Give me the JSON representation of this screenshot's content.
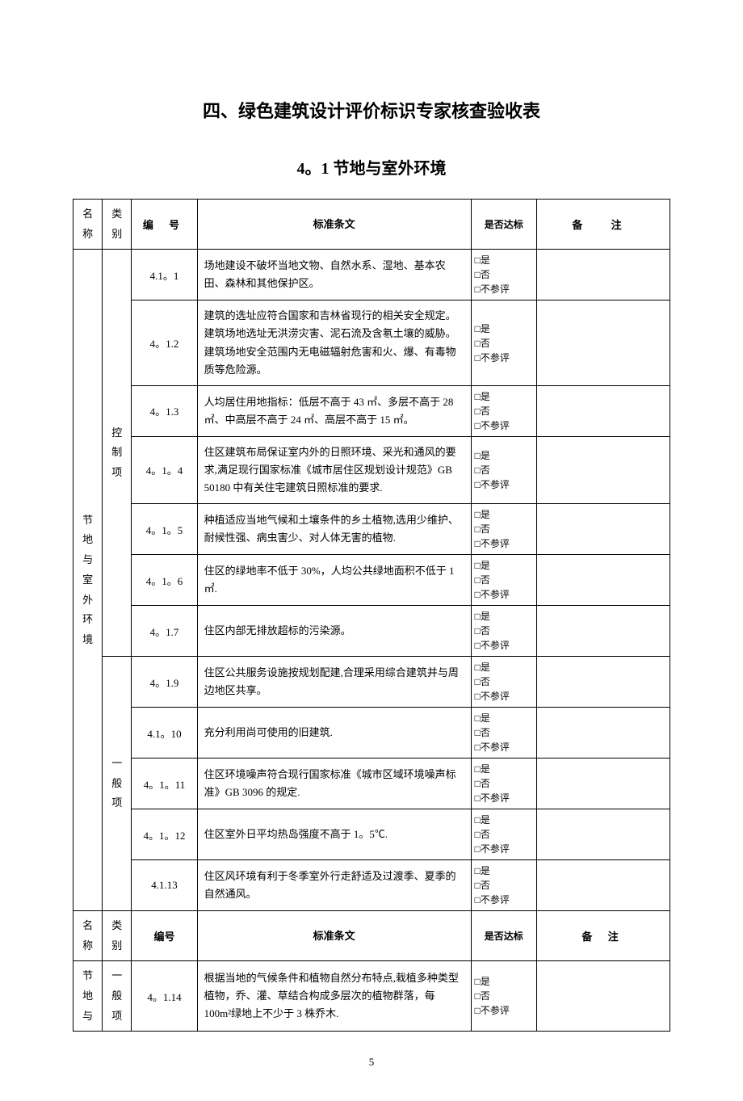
{
  "title": "四、绿色建筑设计评价标识专家核查验收表",
  "subtitle": "4。1 节地与室外环境",
  "header": {
    "name": "名称",
    "cat": "类别",
    "num": "编 号",
    "text": "标准条文",
    "pass": "是否达标",
    "note": "备  注"
  },
  "header2": {
    "name": "名称",
    "cat": "类别",
    "num": "编号",
    "text": "标准条文",
    "pass": "是否达标",
    "note": "备 注"
  },
  "section_name_1": "节地与室外环境",
  "cat_control": "控制项",
  "cat_general": "一般项",
  "section_name_2": "节地与",
  "cat_general_2": "一般项",
  "checkbox": {
    "yes": "□是",
    "no": "□否",
    "na": "□不参评"
  },
  "rows": [
    {
      "num": "4.1。1",
      "text": "场地建设不破坏当地文物、自然水系、湿地、基本农田、森林和其他保护区。"
    },
    {
      "num": "4。1.2",
      "text": "建筑的选址应符合国家和吉林省现行的相关安全规定。建筑场地选址无洪涝灾害、泥石流及含氡土壤的威胁。建筑场地安全范围内无电磁辐射危害和火、爆、有毒物质等危险源。"
    },
    {
      "num": "4。1.3",
      "text": "人均居住用地指标：低层不高于 43 ㎡、多层不高于 28 ㎡、中高层不高于 24 ㎡、高层不高于 15 ㎡。"
    },
    {
      "num": "4。1。4",
      "text": "住区建筑布局保证室内外的日照环境、采光和通风的要求,满足现行国家标准《城市居住区规划设计规范》GB 50180 中有关住宅建筑日照标准的要求."
    },
    {
      "num": "4。1。5",
      "text": "种植适应当地气候和土壤条件的乡土植物,选用少维护、耐候性强、病虫害少、对人体无害的植物."
    },
    {
      "num": "4。1。6",
      "text": " 住区的绿地率不低于 30%，人均公共绿地面积不低于 1 ㎡."
    },
    {
      "num": "4。1.7",
      "text": "住区内部无排放超标的污染源。"
    },
    {
      "num": "4。1.9",
      "text": "住区公共服务设施按规划配建,合理采用综合建筑并与周边地区共享。"
    },
    {
      "num": "4.1。10",
      "text": "充分利用尚可使用的旧建筑."
    },
    {
      "num": "4。1。11",
      "text": "住区环境噪声符合现行国家标准《城市区域环境噪声标准》GB 3096 的规定."
    },
    {
      "num": "4。1。12",
      "text": "住区室外日平均热岛强度不高于 1。5℃."
    },
    {
      "num": "4.1.13",
      "text": "住区风环境有利于冬季室外行走舒适及过渡季、夏季的自然通风。"
    }
  ],
  "rows2": [
    {
      "num": "4。1.14",
      "text": "根据当地的气候条件和植物自然分布特点,栽植多种类型植物，乔、灌、草结合构成多层次的植物群落，每 100m²绿地上不少于 3 株乔木."
    }
  ],
  "page": "5"
}
